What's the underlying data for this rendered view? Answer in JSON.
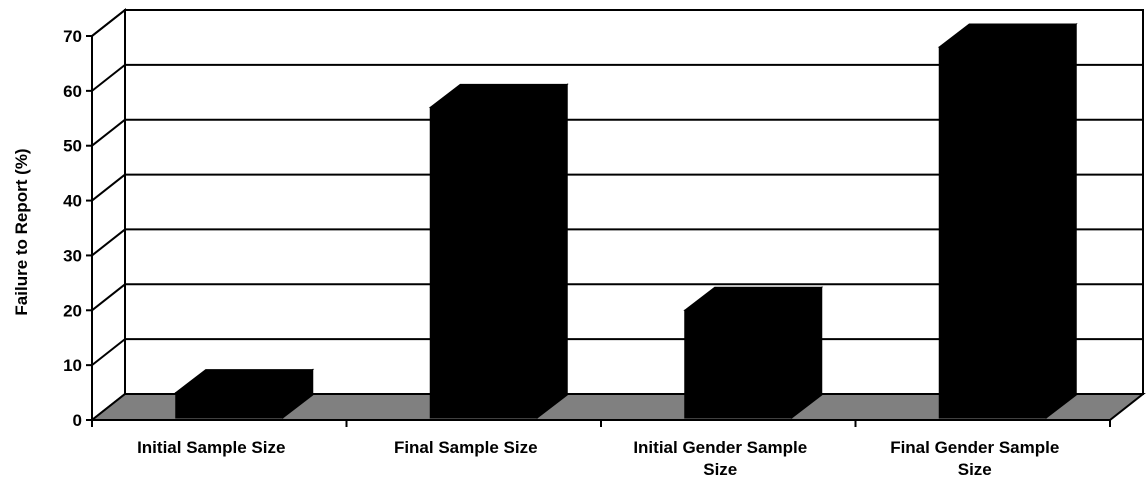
{
  "chart_data": {
    "type": "bar",
    "style": "3d",
    "categories": [
      [
        "Initial Sample Size"
      ],
      [
        "Final Sample Size"
      ],
      [
        "Initial Gender Sample",
        "Size"
      ],
      [
        "Final Gender Sample",
        "Size"
      ]
    ],
    "values": [
      5,
      57,
      20,
      68
    ],
    "ylabel": "Failure to Report (%)",
    "ylim": [
      0,
      70
    ],
    "yticks": [
      0,
      10,
      20,
      30,
      40,
      50,
      60,
      70
    ],
    "grid": true,
    "legend": "none",
    "colors": {
      "bar": "#000000",
      "floor": "#808080",
      "background": "#ffffff",
      "lines": "#000000"
    }
  }
}
